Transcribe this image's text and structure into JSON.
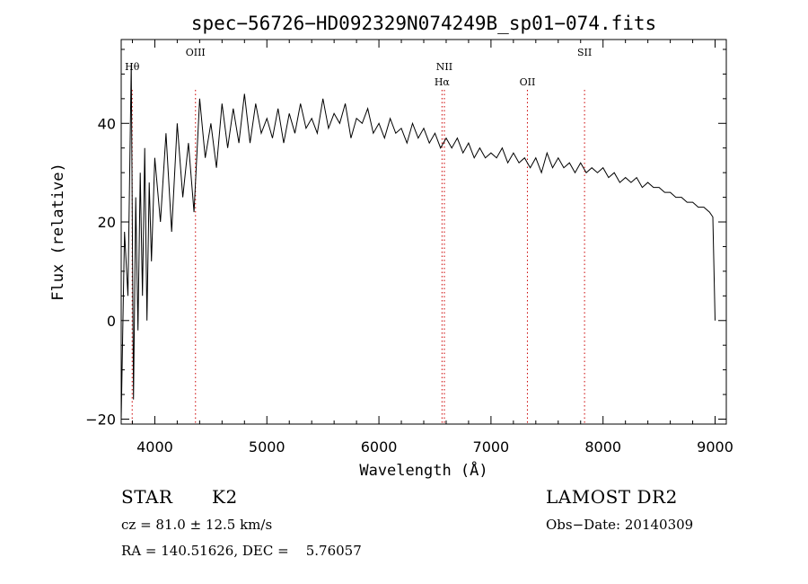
{
  "chart_data": {
    "type": "line",
    "title": "spec−56726−HD092329N074249B_sp01−074.fits",
    "xlabel": "Wavelength (Å)",
    "ylabel": "Flux (relative)",
    "xlim": [
      3700,
      9100
    ],
    "ylim": [
      -21,
      57
    ],
    "xticks": [
      4000,
      5000,
      6000,
      7000,
      8000,
      9000
    ],
    "xtick_labels": [
      "4000",
      "5000",
      "6000",
      "7000",
      "8000",
      "9000"
    ],
    "yticks": [
      -20,
      0,
      20,
      40
    ],
    "ytick_labels": [
      "−20",
      "0",
      "20",
      "40"
    ],
    "grid": false,
    "series": [
      {
        "x": [
          3700,
          3730,
          3760,
          3790,
          3810,
          3830,
          3850,
          3870,
          3890,
          3910,
          3930,
          3950,
          3970,
          4000,
          4050,
          4100,
          4150,
          4200,
          4250,
          4300,
          4350,
          4400,
          4450,
          4500,
          4550,
          4600,
          4650,
          4700,
          4750,
          4800,
          4850,
          4900,
          4950,
          5000,
          5050,
          5100,
          5150,
          5200,
          5250,
          5300,
          5350,
          5400,
          5450,
          5500,
          5550,
          5600,
          5650,
          5700,
          5750,
          5800,
          5850,
          5900,
          5950,
          6000,
          6050,
          6100,
          6150,
          6200,
          6250,
          6300,
          6350,
          6400,
          6450,
          6500,
          6550,
          6600,
          6650,
          6700,
          6750,
          6800,
          6850,
          6900,
          6950,
          7000,
          7050,
          7100,
          7150,
          7200,
          7250,
          7300,
          7350,
          7400,
          7450,
          7500,
          7550,
          7600,
          7650,
          7700,
          7750,
          7800,
          7850,
          7900,
          7950,
          8000,
          8050,
          8100,
          8150,
          8200,
          8250,
          8300,
          8350,
          8400,
          8450,
          8500,
          8550,
          8600,
          8650,
          8700,
          8750,
          8800,
          8850,
          8900,
          8950,
          8980,
          9000
        ],
        "y": [
          -20,
          18,
          5,
          52,
          -16,
          25,
          -2,
          30,
          5,
          35,
          0,
          28,
          12,
          33,
          20,
          38,
          18,
          40,
          25,
          36,
          22,
          45,
          33,
          40,
          31,
          44,
          35,
          43,
          36,
          46,
          36,
          44,
          38,
          41,
          37,
          43,
          36,
          42,
          38,
          44,
          39,
          41,
          38,
          45,
          39,
          42,
          40,
          44,
          37,
          41,
          40,
          43,
          38,
          40,
          37,
          41,
          38,
          39,
          36,
          40,
          37,
          39,
          36,
          38,
          35,
          37,
          35,
          37,
          34,
          36,
          33,
          35,
          33,
          34,
          33,
          35,
          32,
          34,
          32,
          33,
          31,
          33,
          30,
          34,
          31,
          33,
          31,
          32,
          30,
          32,
          30,
          31,
          30,
          31,
          29,
          30,
          28,
          29,
          28,
          29,
          27,
          28,
          27,
          27,
          26,
          26,
          25,
          25,
          24,
          24,
          23,
          23,
          22,
          21,
          0
        ]
      }
    ],
    "lines": [
      {
        "label": "Hθ",
        "x": 3798
      },
      {
        "label": "OIII",
        "x": 4363
      },
      {
        "label": "NII",
        "x": 6584
      },
      {
        "label": "Hα",
        "x": 6563
      },
      {
        "label": "OII",
        "x": 7325
      },
      {
        "label": "SII",
        "x": 7835
      }
    ]
  },
  "info": {
    "object_class": "STAR",
    "subclass": "K2",
    "survey": "LAMOST DR2",
    "redshift": "cz = 81.0 ± 12.5 km/s",
    "obs_date": "Obs−Date: 20140309",
    "coords": "RA = 140.51626, DEC =    5.76057"
  }
}
